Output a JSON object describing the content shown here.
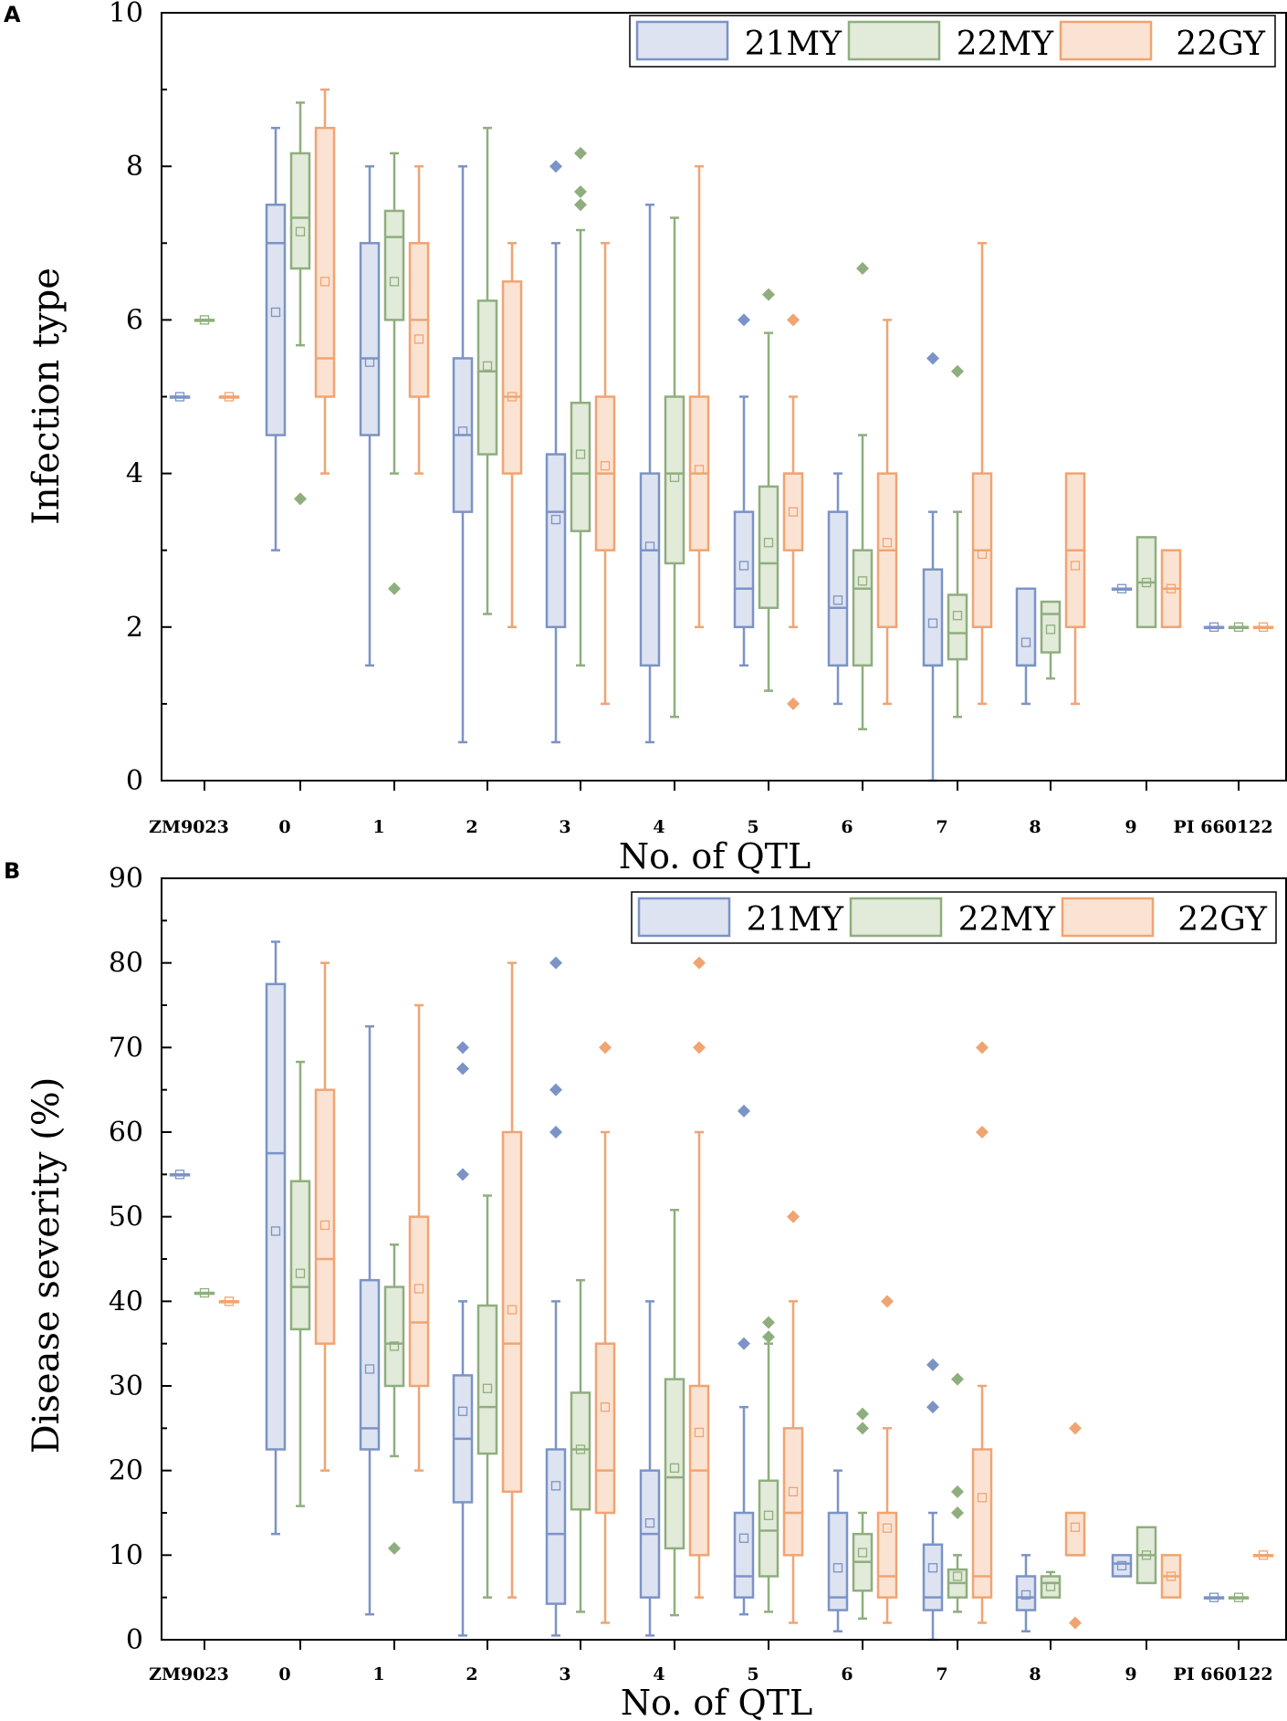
{
  "series_colors": {
    "21MY": {
      "stroke": "#7b93c6",
      "fill": "#dde3f0"
    },
    "22MY": {
      "stroke": "#8fae7e",
      "fill": "#e2ead9"
    },
    "22GY": {
      "stroke": "#f0a472",
      "fill": "#fbe3d3"
    }
  },
  "chart_data": [
    {
      "type": "box",
      "panel": "A",
      "ylabel": "Infection type",
      "xlabel": "No. of QTL",
      "ylim": [
        0,
        10
      ],
      "yticks": [
        0,
        2,
        4,
        6,
        8,
        10
      ],
      "categories": [
        "ZM9023",
        "0",
        "1",
        "2",
        "3",
        "4",
        "5",
        "6",
        "7",
        "8",
        "9",
        "PI 660122"
      ],
      "legend": [
        "21MY",
        "22MY",
        "22GY"
      ],
      "legend_position": "top-right",
      "series": [
        {
          "name": "21MY",
          "boxes": [
            {
              "min": 5,
              "q1": 5,
              "median": 5,
              "q3": 5,
              "max": 5,
              "mean": 5,
              "outliers": []
            },
            {
              "min": 3,
              "q1": 4.5,
              "median": 7,
              "q3": 7.5,
              "max": 8.5,
              "mean": 6.1,
              "outliers": []
            },
            {
              "min": 1.5,
              "q1": 4.5,
              "median": 5.5,
              "q3": 7,
              "max": 8,
              "mean": 5.45,
              "outliers": []
            },
            {
              "min": 0.5,
              "q1": 3.5,
              "median": 4.5,
              "q3": 5.5,
              "max": 8,
              "mean": 4.55,
              "outliers": []
            },
            {
              "min": 0.5,
              "q1": 2,
              "median": 3.5,
              "q3": 4.25,
              "max": 7,
              "mean": 3.4,
              "outliers": [
                8
              ]
            },
            {
              "min": 0.5,
              "q1": 1.5,
              "median": 3,
              "q3": 4,
              "max": 7.5,
              "mean": 3.05,
              "outliers": []
            },
            {
              "min": 1.5,
              "q1": 2,
              "median": 2.5,
              "q3": 3.5,
              "max": 5,
              "mean": 2.8,
              "outliers": [
                6
              ]
            },
            {
              "min": 1,
              "q1": 1.5,
              "median": 2.25,
              "q3": 3.5,
              "max": 4,
              "mean": 2.35,
              "outliers": []
            },
            {
              "min": 0,
              "q1": 1.5,
              "median": 1.5,
              "q3": 2.75,
              "max": 3.5,
              "mean": 2.05,
              "outliers": [
                5.5
              ]
            },
            {
              "min": 1,
              "q1": 1.5,
              "median": 1.5,
              "q3": 2.5,
              "max": 2.5,
              "mean": 1.8,
              "outliers": []
            },
            {
              "min": 2.5,
              "q1": 2.5,
              "median": 2.5,
              "q3": 2.5,
              "max": 2.5,
              "mean": 2.5,
              "outliers": []
            },
            {
              "min": 2,
              "q1": 2,
              "median": 2,
              "q3": 2,
              "max": 2,
              "mean": 2,
              "outliers": []
            }
          ]
        },
        {
          "name": "22MY",
          "boxes": [
            {
              "min": 6,
              "q1": 6,
              "median": 6,
              "q3": 6,
              "max": 6,
              "mean": 6,
              "outliers": []
            },
            {
              "min": 5.67,
              "q1": 6.67,
              "median": 7.33,
              "q3": 8.17,
              "max": 8.83,
              "mean": 7.15,
              "outliers": [
                3.67
              ]
            },
            {
              "min": 4,
              "q1": 6,
              "median": 7.08,
              "q3": 7.42,
              "max": 8.17,
              "mean": 6.5,
              "outliers": [
                2.5
              ]
            },
            {
              "min": 2.17,
              "q1": 4.25,
              "median": 5.33,
              "q3": 6.25,
              "max": 8.5,
              "mean": 5.4,
              "outliers": []
            },
            {
              "min": 1.5,
              "q1": 3.25,
              "median": 4,
              "q3": 4.92,
              "max": 7.17,
              "mean": 4.25,
              "outliers": [
                7.5,
                7.67,
                8.17
              ]
            },
            {
              "min": 0.83,
              "q1": 2.83,
              "median": 4,
              "q3": 5,
              "max": 7.33,
              "mean": 3.95,
              "outliers": []
            },
            {
              "min": 1.17,
              "q1": 2.25,
              "median": 2.83,
              "q3": 3.83,
              "max": 5.83,
              "mean": 3.1,
              "outliers": [
                6.33
              ]
            },
            {
              "min": 0.67,
              "q1": 1.5,
              "median": 2.5,
              "q3": 3,
              "max": 4.5,
              "mean": 2.6,
              "outliers": [
                6.67
              ]
            },
            {
              "min": 0.83,
              "q1": 1.58,
              "median": 1.92,
              "q3": 2.42,
              "max": 3.5,
              "mean": 2.15,
              "outliers": [
                5.33
              ]
            },
            {
              "min": 1.33,
              "q1": 1.67,
              "median": 2.17,
              "q3": 2.33,
              "max": 2.33,
              "mean": 1.97,
              "outliers": []
            },
            {
              "min": 2,
              "q1": 2,
              "median": 2.58,
              "q3": 3.17,
              "max": 3.17,
              "mean": 2.58,
              "outliers": []
            },
            {
              "min": 2,
              "q1": 2,
              "median": 2,
              "q3": 2,
              "max": 2,
              "mean": 2,
              "outliers": []
            }
          ]
        },
        {
          "name": "22GY",
          "boxes": [
            {
              "min": 5,
              "q1": 5,
              "median": 5,
              "q3": 5,
              "max": 5,
              "mean": 5,
              "outliers": []
            },
            {
              "min": 4,
              "q1": 5,
              "median": 5.5,
              "q3": 8.5,
              "max": 9,
              "mean": 6.5,
              "outliers": []
            },
            {
              "min": 4,
              "q1": 5,
              "median": 6,
              "q3": 7,
              "max": 8,
              "mean": 5.75,
              "outliers": []
            },
            {
              "min": 2,
              "q1": 4,
              "median": 5,
              "q3": 6.5,
              "max": 7,
              "mean": 5,
              "outliers": []
            },
            {
              "min": 1,
              "q1": 3,
              "median": 4,
              "q3": 5,
              "max": 7,
              "mean": 4.1,
              "outliers": []
            },
            {
              "min": 2,
              "q1": 3,
              "median": 4,
              "q3": 5,
              "max": 8,
              "mean": 4.05,
              "outliers": []
            },
            {
              "min": 2,
              "q1": 3,
              "median": 4,
              "q3": 4,
              "max": 5,
              "mean": 3.5,
              "outliers": [
                6,
                1
              ]
            },
            {
              "min": 1,
              "q1": 2,
              "median": 3,
              "q3": 4,
              "max": 6,
              "mean": 3.1,
              "outliers": []
            },
            {
              "min": 1,
              "q1": 2,
              "median": 3,
              "q3": 4,
              "max": 7,
              "mean": 2.95,
              "outliers": []
            },
            {
              "min": 1,
              "q1": 2,
              "median": 3,
              "q3": 4,
              "max": 4,
              "mean": 2.8,
              "outliers": []
            },
            {
              "min": 2,
              "q1": 2,
              "median": 2.5,
              "q3": 3,
              "max": 3,
              "mean": 2.5,
              "outliers": []
            },
            {
              "min": 2,
              "q1": 2,
              "median": 2,
              "q3": 2,
              "max": 2,
              "mean": 2,
              "outliers": []
            }
          ]
        }
      ]
    },
    {
      "type": "box",
      "panel": "B",
      "ylabel": "Disease severity (%)",
      "xlabel": "No. of QTL",
      "ylim": [
        0,
        90
      ],
      "yticks": [
        0,
        10,
        20,
        30,
        40,
        50,
        60,
        70,
        80,
        90
      ],
      "categories": [
        "ZM9023",
        "0",
        "1",
        "2",
        "3",
        "4",
        "5",
        "6",
        "7",
        "8",
        "9",
        "PI 660122"
      ],
      "legend": [
        "21MY",
        "22MY",
        "22GY"
      ],
      "legend_position": "top-right",
      "series": [
        {
          "name": "21MY",
          "boxes": [
            {
              "min": 55,
              "q1": 55,
              "median": 55,
              "q3": 55,
              "max": 55,
              "mean": 55,
              "outliers": []
            },
            {
              "min": 12.5,
              "q1": 22.5,
              "median": 57.5,
              "q3": 77.5,
              "max": 82.5,
              "mean": 48.3,
              "outliers": []
            },
            {
              "min": 3,
              "q1": 22.5,
              "median": 25,
              "q3": 42.5,
              "max": 72.5,
              "mean": 32,
              "outliers": []
            },
            {
              "min": 0.5,
              "q1": 16.25,
              "median": 23.75,
              "q3": 31.25,
              "max": 40,
              "mean": 27,
              "outliers": [
                55,
                67.5,
                70
              ]
            },
            {
              "min": 0.5,
              "q1": 4.25,
              "median": 12.5,
              "q3": 22.5,
              "max": 40,
              "mean": 18.2,
              "outliers": [
                60,
                65,
                80
              ]
            },
            {
              "min": 0.5,
              "q1": 5,
              "median": 12.5,
              "q3": 20,
              "max": 40,
              "mean": 13.8,
              "outliers": []
            },
            {
              "min": 3,
              "q1": 5,
              "median": 7.5,
              "q3": 15,
              "max": 27.5,
              "mean": 12,
              "outliers": [
                35,
                62.5
              ]
            },
            {
              "min": 1,
              "q1": 3.5,
              "median": 5,
              "q3": 15,
              "max": 20,
              "mean": 8.5,
              "outliers": []
            },
            {
              "min": 0,
              "q1": 3.5,
              "median": 5,
              "q3": 11.25,
              "max": 15,
              "mean": 8.5,
              "outliers": [
                27.5,
                32.5
              ]
            },
            {
              "min": 1,
              "q1": 3.5,
              "median": 5,
              "q3": 7.5,
              "max": 10,
              "mean": 5.3,
              "outliers": []
            },
            {
              "min": 7.5,
              "q1": 7.5,
              "median": 9,
              "q3": 10,
              "max": 10,
              "mean": 8.75,
              "outliers": []
            },
            {
              "min": 5,
              "q1": 5,
              "median": 5,
              "q3": 5,
              "max": 5,
              "mean": 5,
              "outliers": []
            }
          ]
        },
        {
          "name": "22MY",
          "boxes": [
            {
              "min": 41,
              "q1": 41,
              "median": 41,
              "q3": 41,
              "max": 41,
              "mean": 41,
              "outliers": []
            },
            {
              "min": 15.8,
              "q1": 36.7,
              "median": 41.7,
              "q3": 54.2,
              "max": 68.3,
              "mean": 43.3,
              "outliers": []
            },
            {
              "min": 21.7,
              "q1": 30,
              "median": 35,
              "q3": 41.7,
              "max": 46.7,
              "mean": 34.7,
              "outliers": [
                10.8
              ]
            },
            {
              "min": 5,
              "q1": 22,
              "median": 27.5,
              "q3": 39.5,
              "max": 52.5,
              "mean": 29.7,
              "outliers": []
            },
            {
              "min": 3.3,
              "q1": 15.4,
              "median": 22.5,
              "q3": 29.2,
              "max": 42.5,
              "mean": 22.5,
              "outliers": []
            },
            {
              "min": 2.9,
              "q1": 10.8,
              "median": 19.2,
              "q3": 30.8,
              "max": 50.8,
              "mean": 20.3,
              "outliers": []
            },
            {
              "min": 3.3,
              "q1": 7.5,
              "median": 12.9,
              "q3": 18.8,
              "max": 35,
              "mean": 14.7,
              "outliers": [
                35.8,
                37.5
              ]
            },
            {
              "min": 2.5,
              "q1": 5.8,
              "median": 9.2,
              "q3": 12.5,
              "max": 15,
              "mean": 10.3,
              "outliers": [
                25,
                26.7
              ]
            },
            {
              "min": 3.3,
              "q1": 5,
              "median": 6.7,
              "q3": 8.3,
              "max": 10,
              "mean": 7.5,
              "outliers": [
                15,
                17.5,
                30.8
              ]
            },
            {
              "min": 5,
              "q1": 5,
              "median": 6.7,
              "q3": 7.5,
              "max": 8,
              "mean": 6.3,
              "outliers": []
            },
            {
              "min": 6.7,
              "q1": 6.7,
              "median": 10,
              "q3": 13.3,
              "max": 13.3,
              "mean": 10,
              "outliers": []
            },
            {
              "min": 5,
              "q1": 5,
              "median": 5,
              "q3": 5,
              "max": 5,
              "mean": 5,
              "outliers": []
            }
          ]
        },
        {
          "name": "22GY",
          "boxes": [
            {
              "min": 40,
              "q1": 40,
              "median": 40,
              "q3": 40,
              "max": 40,
              "mean": 40,
              "outliers": []
            },
            {
              "min": 20,
              "q1": 35,
              "median": 45,
              "q3": 65,
              "max": 80,
              "mean": 49,
              "outliers": []
            },
            {
              "min": 20,
              "q1": 30,
              "median": 37.5,
              "q3": 50,
              "max": 75,
              "mean": 41.5,
              "outliers": []
            },
            {
              "min": 5,
              "q1": 17.5,
              "median": 35,
              "q3": 60,
              "max": 80,
              "mean": 39,
              "outliers": []
            },
            {
              "min": 2,
              "q1": 15,
              "median": 20,
              "q3": 35,
              "max": 60,
              "mean": 27.5,
              "outliers": [
                70
              ]
            },
            {
              "min": 5,
              "q1": 10,
              "median": 20,
              "q3": 30,
              "max": 60,
              "mean": 24.5,
              "outliers": [
                70,
                80
              ]
            },
            {
              "min": 2,
              "q1": 10,
              "median": 15,
              "q3": 25,
              "max": 40,
              "mean": 17.5,
              "outliers": [
                50
              ]
            },
            {
              "min": 2,
              "q1": 5,
              "median": 7.5,
              "q3": 15,
              "max": 25,
              "mean": 13.2,
              "outliers": [
                40
              ]
            },
            {
              "min": 2,
              "q1": 5,
              "median": 7.5,
              "q3": 22.5,
              "max": 30,
              "mean": 16.8,
              "outliers": [
                60,
                70
              ]
            },
            {
              "min": 10,
              "q1": 10,
              "median": 10,
              "q3": 15,
              "max": 15,
              "mean": 13.3,
              "outliers": [
                2,
                25
              ]
            },
            {
              "min": 5,
              "q1": 5,
              "median": 7.5,
              "q3": 10,
              "max": 10,
              "mean": 7.5,
              "outliers": []
            },
            {
              "min": 10,
              "q1": 10,
              "median": 10,
              "q3": 10,
              "max": 10,
              "mean": 10,
              "outliers": []
            }
          ]
        }
      ]
    }
  ]
}
